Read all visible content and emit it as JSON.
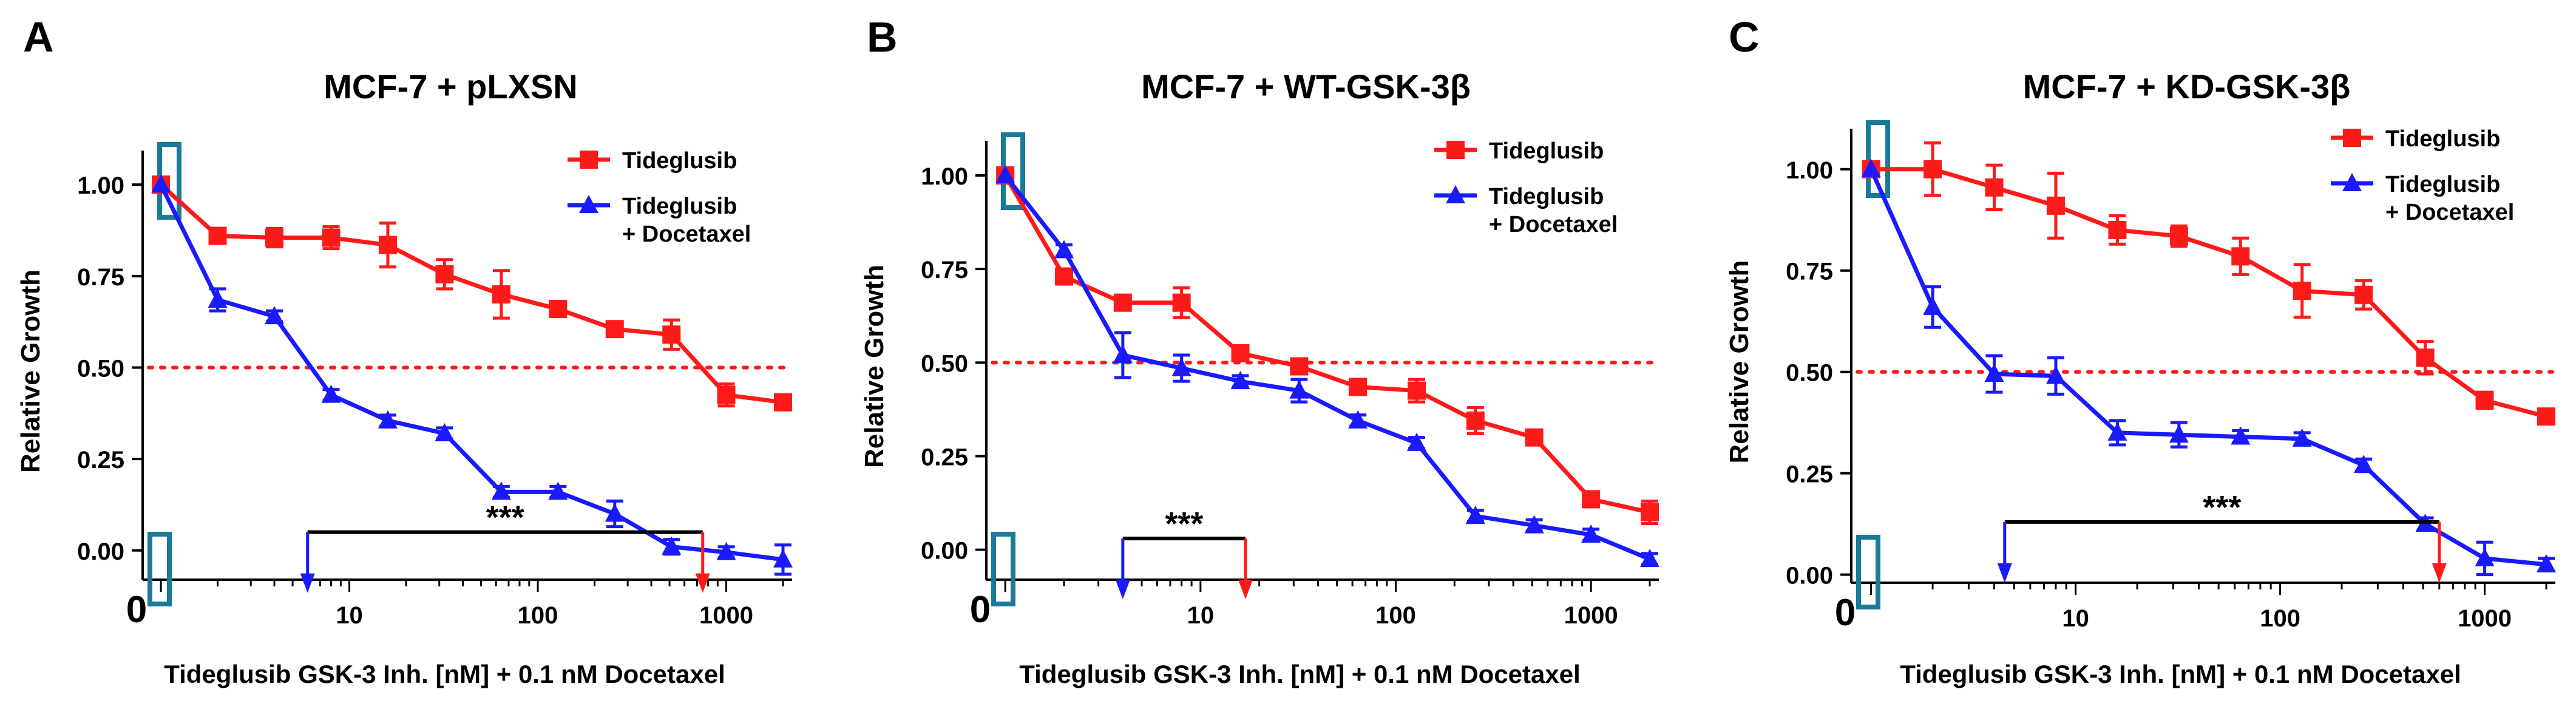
{
  "chart_data": [
    {
      "type": "line",
      "panel_label": "A",
      "title": "MCF-7 + pLXSN",
      "xlabel": "Tideglusib GSK-3 Inh. [nM] + 0.1 nM Docetaxel",
      "ylabel": "Relative Growth",
      "xscale": "log",
      "xlim": [
        0.8,
        2000
      ],
      "ylim": [
        -0.08,
        1.06
      ],
      "yticks": [
        "0.00",
        "0.25",
        "0.50",
        "0.75",
        "1.00"
      ],
      "xticks": [
        "0",
        "10",
        "100",
        "1000"
      ],
      "reference_line": {
        "y": 0.5,
        "style": "dotted",
        "color": "#ff1a1a"
      },
      "legend_position": "top-right",
      "significance": {
        "label": "***",
        "x_start": 6,
        "x_end": 750,
        "y": 0.05
      },
      "highlight_box_color": "#1a7a9a",
      "series": [
        {
          "name": "Tideglusib",
          "color": "#ff1a1a",
          "marker": "square",
          "points": [
            {
              "x": 1,
              "y": 1.0,
              "err": 0.0
            },
            {
              "x": 2,
              "y": 0.86,
              "err": 0.02
            },
            {
              "x": 4,
              "y": 0.855,
              "err": 0.025
            },
            {
              "x": 8,
              "y": 0.855,
              "err": 0.03
            },
            {
              "x": 16,
              "y": 0.835,
              "err": 0.06
            },
            {
              "x": 32,
              "y": 0.755,
              "err": 0.04
            },
            {
              "x": 64,
              "y": 0.7,
              "err": 0.065
            },
            {
              "x": 128,
              "y": 0.66,
              "err": 0.015
            },
            {
              "x": 256,
              "y": 0.605,
              "err": 0.02
            },
            {
              "x": 512,
              "y": 0.59,
              "err": 0.04
            },
            {
              "x": 1000,
              "y": 0.425,
              "err": 0.03
            },
            {
              "x": 2000,
              "y": 0.405,
              "err": 0.015
            }
          ]
        },
        {
          "name": "Tideglusib",
          "name_line2": "+ Docetaxel",
          "color": "#1a1aff",
          "marker": "triangle",
          "points": [
            {
              "x": 1,
              "y": 1.0,
              "err": 0.0
            },
            {
              "x": 2,
              "y": 0.685,
              "err": 0.03
            },
            {
              "x": 4,
              "y": 0.64,
              "err": 0.015
            },
            {
              "x": 8,
              "y": 0.425,
              "err": 0.015
            },
            {
              "x": 16,
              "y": 0.355,
              "err": 0.015
            },
            {
              "x": 32,
              "y": 0.32,
              "err": 0.015
            },
            {
              "x": 64,
              "y": 0.16,
              "err": 0.015
            },
            {
              "x": 128,
              "y": 0.16,
              "err": 0.015
            },
            {
              "x": 256,
              "y": 0.1,
              "err": 0.035
            },
            {
              "x": 512,
              "y": 0.01,
              "err": 0.02
            },
            {
              "x": 1000,
              "y": -0.005,
              "err": 0.015
            },
            {
              "x": 2000,
              "y": -0.025,
              "err": 0.04
            }
          ]
        }
      ]
    },
    {
      "type": "line",
      "panel_label": "B",
      "title": "MCF-7 + WT-GSK-3β",
      "xlabel": "Tideglusib GSK-3 Inh. [nM] + 0.1 nM Docetaxel",
      "ylabel": "Relative Growth",
      "xscale": "log",
      "xlim": [
        0.8,
        2000
      ],
      "ylim": [
        -0.08,
        1.06
      ],
      "yticks": [
        "0.00",
        "0.25",
        "0.50",
        "0.75",
        "1.00"
      ],
      "xticks": [
        "0",
        "10",
        "100",
        "1000"
      ],
      "reference_line": {
        "y": 0.5,
        "style": "dotted",
        "color": "#ff1a1a"
      },
      "legend_position": "top-right",
      "significance": {
        "label": "***",
        "x_start": 4,
        "x_end": 17,
        "y": 0.03
      },
      "highlight_box_color": "#1a7a9a",
      "series": [
        {
          "name": "Tideglusib",
          "color": "#ff1a1a",
          "marker": "square",
          "points": [
            {
              "x": 1,
              "y": 1.0,
              "err": 0.0
            },
            {
              "x": 2,
              "y": 0.73,
              "err": 0.02
            },
            {
              "x": 4,
              "y": 0.66,
              "err": 0.02
            },
            {
              "x": 8,
              "y": 0.66,
              "err": 0.04
            },
            {
              "x": 16,
              "y": 0.525,
              "err": 0.015
            },
            {
              "x": 32,
              "y": 0.49,
              "err": 0.02
            },
            {
              "x": 64,
              "y": 0.435,
              "err": 0.015
            },
            {
              "x": 128,
              "y": 0.425,
              "err": 0.03
            },
            {
              "x": 256,
              "y": 0.345,
              "err": 0.035
            },
            {
              "x": 512,
              "y": 0.3,
              "err": 0.015
            },
            {
              "x": 1000,
              "y": 0.135,
              "err": 0.02
            },
            {
              "x": 2000,
              "y": 0.1,
              "err": 0.03
            }
          ]
        },
        {
          "name": "Tideglusib",
          "name_line2": "+ Docetaxel",
          "color": "#1a1aff",
          "marker": "triangle",
          "points": [
            {
              "x": 1,
              "y": 1.0,
              "err": 0.0
            },
            {
              "x": 2,
              "y": 0.8,
              "err": 0.015
            },
            {
              "x": 4,
              "y": 0.52,
              "err": 0.06
            },
            {
              "x": 8,
              "y": 0.485,
              "err": 0.035
            },
            {
              "x": 16,
              "y": 0.45,
              "err": 0.015
            },
            {
              "x": 32,
              "y": 0.425,
              "err": 0.03
            },
            {
              "x": 64,
              "y": 0.345,
              "err": 0.015
            },
            {
              "x": 128,
              "y": 0.285,
              "err": 0.015
            },
            {
              "x": 256,
              "y": 0.09,
              "err": 0.015
            },
            {
              "x": 512,
              "y": 0.065,
              "err": 0.015
            },
            {
              "x": 1000,
              "y": 0.04,
              "err": 0.015
            },
            {
              "x": 2000,
              "y": -0.025,
              "err": 0.015
            }
          ]
        }
      ]
    },
    {
      "type": "line",
      "panel_label": "C",
      "title": "MCF-7 + KD-GSK-3β",
      "xlabel": "Tideglusib GSK-3 Inh. [nM] + 0.1 nM Docetaxel",
      "ylabel": "Relative Growth",
      "xscale": "log",
      "xlim": [
        0.8,
        2000
      ],
      "ylim": [
        -0.02,
        1.07
      ],
      "yticks": [
        "0.00",
        "0.25",
        "0.50",
        "0.75",
        "1.00"
      ],
      "xticks": [
        "0",
        "10",
        "100",
        "1000"
      ],
      "reference_line": {
        "y": 0.5,
        "style": "dotted",
        "color": "#ff1a1a"
      },
      "legend_position": "top-right",
      "significance": {
        "label": "***",
        "x_start": 4.5,
        "x_end": 600,
        "y": 0.13
      },
      "highlight_box_color": "#1a7a9a",
      "series": [
        {
          "name": "Tideglusib",
          "color": "#ff1a1a",
          "marker": "square",
          "points": [
            {
              "x": 1,
              "y": 1.0,
              "err": 0.0
            },
            {
              "x": 2,
              "y": 1.0,
              "err": 0.065
            },
            {
              "x": 4,
              "y": 0.955,
              "err": 0.055
            },
            {
              "x": 8,
              "y": 0.91,
              "err": 0.08
            },
            {
              "x": 16,
              "y": 0.85,
              "err": 0.035
            },
            {
              "x": 32,
              "y": 0.835,
              "err": 0.025
            },
            {
              "x": 64,
              "y": 0.785,
              "err": 0.045
            },
            {
              "x": 128,
              "y": 0.7,
              "err": 0.065
            },
            {
              "x": 256,
              "y": 0.69,
              "err": 0.035
            },
            {
              "x": 512,
              "y": 0.535,
              "err": 0.04
            },
            {
              "x": 1000,
              "y": 0.43,
              "err": 0.02
            },
            {
              "x": 2000,
              "y": 0.39,
              "err": 0.015
            }
          ]
        },
        {
          "name": "Tideglusib",
          "name_line2": "+ Docetaxel",
          "color": "#1a1aff",
          "marker": "triangle",
          "points": [
            {
              "x": 1,
              "y": 1.0,
              "err": 0.0
            },
            {
              "x": 2,
              "y": 0.66,
              "err": 0.05
            },
            {
              "x": 4,
              "y": 0.495,
              "err": 0.045
            },
            {
              "x": 8,
              "y": 0.49,
              "err": 0.045
            },
            {
              "x": 16,
              "y": 0.35,
              "err": 0.03
            },
            {
              "x": 32,
              "y": 0.345,
              "err": 0.03
            },
            {
              "x": 64,
              "y": 0.34,
              "err": 0.015
            },
            {
              "x": 128,
              "y": 0.335,
              "err": 0.015
            },
            {
              "x": 256,
              "y": 0.27,
              "err": 0.015
            },
            {
              "x": 512,
              "y": 0.125,
              "err": 0.015
            },
            {
              "x": 1000,
              "y": 0.04,
              "err": 0.04
            },
            {
              "x": 2000,
              "y": 0.025,
              "err": 0.015
            }
          ]
        }
      ]
    }
  ]
}
